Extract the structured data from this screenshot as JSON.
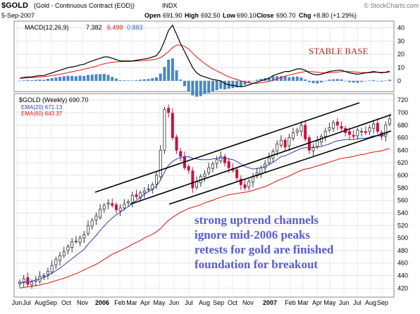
{
  "header": {
    "symbol": "$GOLD",
    "description": "(Gold - Continuous Contract (EOD))",
    "exchange": "INDX",
    "date": "5-Sep-2007",
    "open_label": "Open",
    "open_value": "691.90",
    "high_label": "High",
    "high_value": "692.50",
    "low_label": "Low",
    "low_value": "690.10",
    "close_label": "Close",
    "close_value": "690.70",
    "chg_label": "Chg",
    "chg_value": "+8.80 (+1.29%)",
    "watermark": "© StockCharts.com"
  },
  "macd_panel": {
    "label": "MACD(12,26,9)",
    "macd_value": "7.382",
    "signal_value": "6.499",
    "hist_value": "0.883",
    "annotation": "STABLE BASE",
    "yticks": [
      0,
      10,
      20,
      30,
      40
    ],
    "ylim": [
      -7,
      44
    ]
  },
  "price_panel": {
    "label": "$GOLD (Weekly) 690.70",
    "ema20_label": "EMA(20) 671.13",
    "ema60_label": "EMA(60) 643.37",
    "yticks": [
      420,
      440,
      460,
      480,
      500,
      520,
      540,
      560,
      580,
      600,
      620,
      640,
      660,
      680,
      700,
      720
    ],
    "ylim": [
      408,
      728
    ],
    "annotations": [
      "strong uptrend channels",
      "ignore mid-2006 peaks",
      "retests for gold are finished",
      "foundation for breakout"
    ]
  },
  "xaxis": {
    "ticks": [
      "Jun",
      "Jul",
      "Aug",
      "Sep",
      "Oct",
      "Nov",
      "2006",
      "Feb",
      "Mar",
      "Apr",
      "May",
      "Jun",
      "Jul",
      "Aug",
      "Sep",
      "Oct",
      "Nov",
      "2007",
      "Feb",
      "Mar",
      "Apr",
      "May",
      "Jun",
      "Jul",
      "Aug",
      "Sep"
    ],
    "xlim": [
      0,
      119
    ]
  },
  "colors": {
    "up": "#333333",
    "down": "#cc1144",
    "ema20": "#2a3fb0",
    "ema60": "#e01010",
    "macd": "#000000",
    "signal": "#e01010",
    "hist": "#4a86c8",
    "annotation_red": "#cc2020",
    "annotation_blue": "#5a5ad8"
  },
  "chart_data": [
    {
      "type": "candlestick",
      "title": "$GOLD (Weekly) 690.70",
      "x_unit": "week index (0 = first week of Jun 2005)",
      "series": [
        {
          "name": "$GOLD",
          "values": [
            430,
            435,
            426,
            430,
            433,
            439,
            440,
            447,
            456,
            466,
            472,
            478,
            486,
            494,
            495,
            500,
            505,
            520,
            528,
            535,
            546,
            552,
            556,
            552,
            545,
            548,
            554,
            558,
            568,
            566,
            572,
            575,
            578,
            585,
            600,
            640,
            705,
            700,
            660,
            640,
            630,
            612,
            608,
            580,
            590,
            598,
            602,
            612,
            618,
            625,
            630,
            620,
            612,
            608,
            596,
            585,
            580,
            590,
            598,
            604,
            612,
            618,
            628,
            638,
            650,
            656,
            645,
            660,
            668,
            672,
            680,
            658,
            640,
            645,
            655,
            662,
            670,
            676,
            684,
            680,
            675,
            668,
            665,
            662,
            672,
            670,
            668,
            676,
            682,
            670,
            662,
            680,
            690
          ]
        },
        {
          "name": "EMA(20) 671.13",
          "values": [
            428,
            429,
            430,
            431,
            433,
            435,
            437,
            440,
            444,
            448,
            452,
            457,
            462,
            467,
            472,
            477,
            482,
            490,
            497,
            504,
            512,
            519,
            526,
            532,
            537,
            541,
            546,
            550,
            555,
            560,
            565,
            570,
            574,
            578,
            583,
            592,
            605,
            616,
            622,
            626,
            628,
            629,
            630,
            627,
            626,
            625,
            625,
            625,
            626,
            627,
            628,
            627,
            626,
            625,
            622,
            618,
            614,
            612,
            610,
            611,
            612,
            614,
            617,
            621,
            625,
            630,
            631,
            634,
            637,
            640,
            643,
            644,
            644,
            644,
            645,
            646,
            648,
            650,
            653,
            655,
            656,
            657,
            657,
            657,
            658,
            659,
            659,
            661,
            663,
            663,
            663,
            665,
            671
          ]
        },
        {
          "name": "EMA(60) 643.37",
          "values": [
            420,
            421,
            422,
            423,
            424,
            425,
            427,
            428,
            430,
            432,
            434,
            436,
            438,
            441,
            443,
            446,
            449,
            452,
            455,
            458,
            462,
            466,
            470,
            474,
            477,
            480,
            483,
            486,
            490,
            493,
            496,
            500,
            503,
            506,
            510,
            515,
            522,
            528,
            533,
            537,
            541,
            544,
            547,
            549,
            551,
            553,
            556,
            558,
            560,
            563,
            565,
            567,
            569,
            570,
            571,
            572,
            573,
            574,
            576,
            578,
            580,
            582,
            585,
            588,
            591,
            594,
            596,
            599,
            602,
            605,
            608,
            610,
            611,
            613,
            615,
            617,
            619,
            621,
            623,
            625,
            627,
            628,
            629,
            630,
            632,
            633,
            634,
            636,
            637,
            638,
            639,
            641,
            643
          ]
        }
      ],
      "ylim": [
        408,
        728
      ]
    },
    {
      "type": "line",
      "title": "MACD(12,26,9)",
      "series": [
        {
          "name": "MACD",
          "values": [
            2,
            2.5,
            3,
            3,
            3.5,
            4,
            4,
            5,
            6,
            7,
            8,
            9,
            10,
            10.5,
            11,
            12,
            12.5,
            14,
            15,
            16,
            17,
            18,
            18,
            17,
            16,
            15,
            15,
            15,
            15,
            15.5,
            16,
            16.5,
            17,
            18,
            19,
            23,
            30,
            38,
            42,
            35,
            28,
            22,
            16,
            10,
            6,
            4,
            3,
            2,
            1,
            0.5,
            0,
            -2,
            -3,
            -3.5,
            -4,
            -4.5,
            -4,
            -3,
            -2,
            -1,
            0,
            1,
            2,
            4,
            5,
            6,
            7,
            7,
            8,
            9,
            9,
            8,
            6,
            5,
            4.5,
            5,
            6,
            7,
            7.5,
            8,
            8,
            7,
            6,
            5.5,
            5,
            5.5,
            6,
            6.5,
            7,
            6.5,
            6,
            6.5,
            7.4
          ]
        },
        {
          "name": "Signal",
          "values": [
            2,
            2.1,
            2.3,
            2.5,
            2.7,
            3,
            3.2,
            3.5,
            4,
            4.5,
            5,
            5.5,
            6.2,
            6.8,
            7.5,
            8,
            8.8,
            9.5,
            10.3,
            11,
            12,
            12.8,
            13.5,
            14,
            14.3,
            14.5,
            14.6,
            14.7,
            14.8,
            15,
            15.1,
            15.3,
            15.6,
            16,
            16.4,
            17.5,
            19.5,
            22,
            25,
            27,
            27,
            26,
            24,
            21,
            18,
            15.5,
            13,
            11,
            9,
            7.5,
            6,
            4.5,
            3,
            2,
            1,
            0,
            -1,
            -1.5,
            -1.8,
            -1.8,
            -1.5,
            -1,
            -0.5,
            0.5,
            1.5,
            2.5,
            3.5,
            4.3,
            5,
            5.8,
            6.5,
            7,
            7,
            6.8,
            6.5,
            6.2,
            6,
            6.1,
            6.3,
            6.6,
            6.9,
            7,
            7,
            6.8,
            6.5,
            6.3,
            6.2,
            6.2,
            6.4,
            6.5,
            6.5,
            6.3,
            6.5
          ]
        }
      ],
      "ylim": [
        -7,
        44
      ]
    }
  ]
}
